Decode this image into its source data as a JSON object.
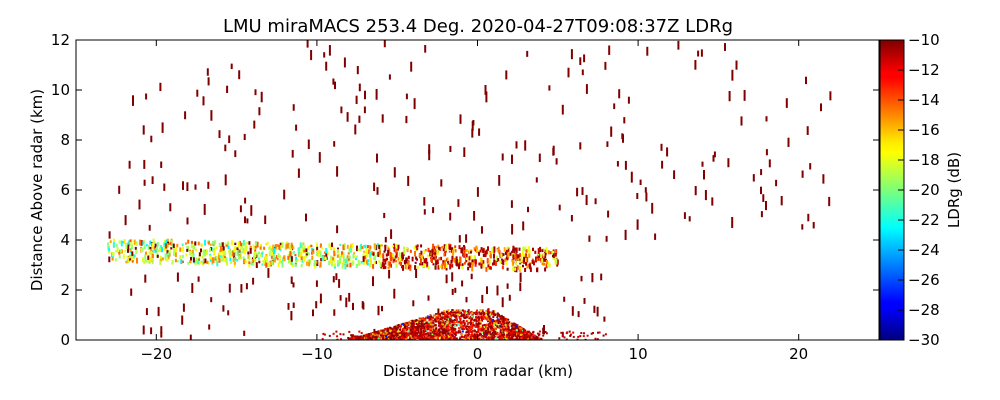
{
  "chart_data": {
    "type": "scatter",
    "title": "LMU miraMACS 253.4 Deg. 2020-04-27T09:08:37Z  LDRg",
    "xlabel": "Distance from radar (km)",
    "ylabel": "Distance Above radar  (km)",
    "xlim": [
      -25,
      25
    ],
    "ylim": [
      0,
      12
    ],
    "x_ticks": [
      -20,
      -10,
      0,
      10,
      20
    ],
    "x_tick_labels": [
      "−20",
      "−10",
      "0",
      "10",
      "20"
    ],
    "y_ticks": [
      0,
      2,
      4,
      6,
      8,
      10,
      12
    ],
    "y_tick_labels": [
      "0",
      "2",
      "4",
      "6",
      "8",
      "10",
      "12"
    ],
    "grid": false,
    "colorbar": {
      "label": "LDRg (dB)",
      "range": [
        -30,
        -10
      ],
      "colormap": "jet",
      "ticks": [
        -10,
        -12,
        -14,
        -16,
        -18,
        -20,
        -22,
        -24,
        -26,
        -28,
        -30
      ],
      "tick_labels": [
        "−10",
        "−12",
        "−14",
        "−16",
        "−18",
        "−20",
        "−22",
        "−24",
        "−26",
        "−28",
        "−30"
      ]
    },
    "features": [
      {
        "name": "near-surface echo",
        "x_range": [
          -8,
          4
        ],
        "height_range": [
          0,
          1.2
        ],
        "ldr_range": [
          -16,
          -10
        ]
      },
      {
        "name": "melting-layer band",
        "x_range": [
          -23,
          5
        ],
        "height_range": [
          2.8,
          4.3
        ],
        "ldr_range": [
          -23,
          -10
        ]
      },
      {
        "name": "sparse high-altitude returns",
        "x_range": [
          -23,
          22
        ],
        "height_range": [
          4,
          12
        ],
        "ldr_value": -10
      }
    ]
  }
}
